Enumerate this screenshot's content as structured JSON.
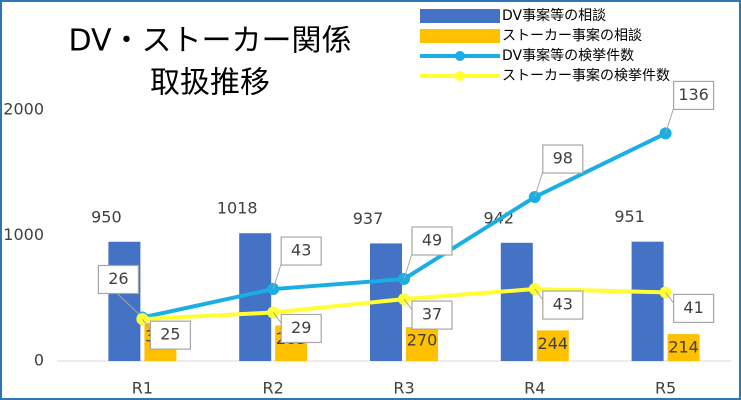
{
  "chart_data": {
    "type": "bar-line",
    "title": [
      "DV・ストーカー関係",
      "取扱推移"
    ],
    "categories": [
      "R1",
      "R2",
      "R3",
      "R4",
      "R5"
    ],
    "series": [
      {
        "name": "DV事案等の相談",
        "type": "bar",
        "color": "#4472c4",
        "values": [
          950,
          1018,
          937,
          942,
          951
        ]
      },
      {
        "name": "ストーカー事案の相談",
        "type": "bar",
        "color": "#ffc000",
        "values": [
          304,
          283,
          270,
          244,
          214
        ]
      },
      {
        "name": "DV事案等の検挙件数",
        "type": "line",
        "axis": "y2",
        "color": "#1aaee5",
        "values": [
          26,
          43,
          49,
          98,
          136
        ]
      },
      {
        "name": "ストーカー事案の検挙件数",
        "type": "line",
        "axis": "y2",
        "color": "#ffff33",
        "values": [
          25,
          29,
          37,
          43,
          41
        ]
      }
    ],
    "ylim": [
      0,
      2000
    ],
    "yticks": [
      0,
      1000,
      2000
    ],
    "y2lim": [
      0,
      150
    ],
    "grid": false,
    "legend": "top-right"
  }
}
